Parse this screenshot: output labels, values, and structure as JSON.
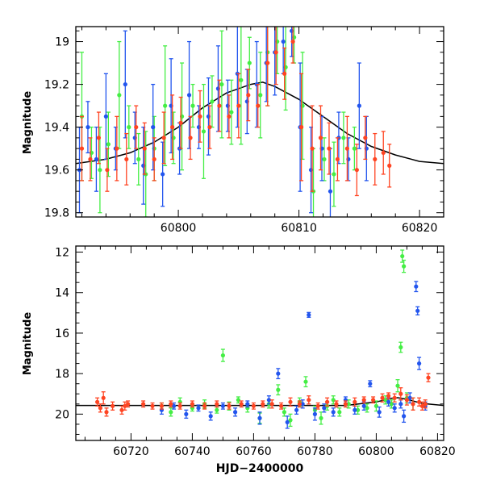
{
  "chart_data": [
    {
      "type": "scatter",
      "panel": "top",
      "title": "",
      "xlabel": "",
      "ylabel": "Magnitude",
      "xlim": [
        60791.5,
        60822
      ],
      "ylim": [
        19.82,
        18.93
      ],
      "y_inverted": true,
      "xticks": [
        60800,
        60810,
        60820
      ],
      "yticks": [
        19,
        19.2,
        19.4,
        19.6,
        19.8
      ],
      "colors": {
        "green": "#44ee44",
        "blue": "#2255ee",
        "red": "#ff4422",
        "model": "#000000"
      },
      "model_curve": {
        "name": "",
        "x": [
          60791.5,
          60794,
          60796,
          60798,
          60800,
          60802,
          60804,
          60806,
          60807,
          60808,
          60810,
          60812,
          60814,
          60816,
          60818,
          60820,
          60822
        ],
        "y": [
          19.57,
          19.55,
          19.52,
          19.47,
          19.4,
          19.31,
          19.24,
          19.2,
          19.19,
          19.21,
          19.27,
          19.35,
          19.43,
          19.49,
          19.53,
          19.56,
          19.57
        ]
      },
      "series": [
        {
          "color": "green",
          "x": [
            60792.0,
            60792.8,
            60793.5,
            60794.2,
            60795.1,
            60795.9,
            60796.7,
            60797.3,
            60798.0,
            60798.9,
            60799.6,
            60800.3,
            60801.2,
            60802.1,
            60802.8,
            60803.6,
            60804.4,
            60805.2,
            60805.9,
            60806.8,
            60807.4,
            60808.2,
            60808.9,
            60809.6,
            60810.3,
            60811.2,
            60812.1,
            60812.9,
            60813.7,
            60814.6
          ],
          "y": [
            19.35,
            19.52,
            19.6,
            19.48,
            19.25,
            19.4,
            19.55,
            19.62,
            19.5,
            19.3,
            19.45,
            19.35,
            19.3,
            19.42,
            19.28,
            19.2,
            19.33,
            19.18,
            19.1,
            19.25,
            19.05,
            19.0,
            19.12,
            18.98,
            19.3,
            19.7,
            19.55,
            19.62,
            19.45,
            19.5
          ],
          "err": [
            0.3,
            0.12,
            0.2,
            0.15,
            0.25,
            0.1,
            0.12,
            0.2,
            0.15,
            0.28,
            0.12,
            0.25,
            0.1,
            0.22,
            0.12,
            0.25,
            0.15,
            0.3,
            0.12,
            0.2,
            0.25,
            0.15,
            0.2,
            0.12,
            0.25,
            0.2,
            0.1,
            0.15,
            0.12,
            0.1
          ]
        },
        {
          "color": "blue",
          "x": [
            60791.8,
            60792.5,
            60793.2,
            60794.0,
            60794.8,
            60795.6,
            60796.4,
            60797.1,
            60797.9,
            60798.7,
            60799.4,
            60800.1,
            60800.9,
            60801.7,
            60802.5,
            60803.3,
            60804.1,
            60804.9,
            60805.7,
            60806.5,
            60807.3,
            60808.0,
            60808.7,
            60809.4,
            60810.1,
            60811.0,
            60811.9,
            60812.6,
            60813.3,
            60814.1,
            60815.0,
            60815.6
          ],
          "y": [
            19.6,
            19.4,
            19.55,
            19.35,
            19.5,
            19.2,
            19.45,
            19.58,
            19.4,
            19.62,
            19.3,
            19.5,
            19.25,
            19.4,
            19.35,
            19.22,
            19.3,
            19.15,
            19.28,
            19.2,
            19.1,
            19.05,
            19.0,
            18.95,
            19.4,
            19.6,
            19.5,
            19.7,
            19.45,
            19.55,
            19.3,
            19.5
          ],
          "err": [
            0.2,
            0.12,
            0.15,
            0.2,
            0.1,
            0.25,
            0.12,
            0.18,
            0.2,
            0.15,
            0.22,
            0.12,
            0.25,
            0.1,
            0.18,
            0.2,
            0.12,
            0.25,
            0.15,
            0.2,
            0.18,
            0.2,
            0.15,
            0.12,
            0.3,
            0.2,
            0.15,
            0.2,
            0.12,
            0.1,
            0.2,
            0.15
          ]
        },
        {
          "color": "red",
          "x": [
            60792.0,
            60792.7,
            60793.4,
            60794.1,
            60794.9,
            60795.7,
            60796.5,
            60797.2,
            60798.0,
            60798.8,
            60799.5,
            60800.2,
            60801.0,
            60801.8,
            60802.6,
            60803.4,
            60804.2,
            60805.0,
            60805.8,
            60806.6,
            60807.4,
            60808.1,
            60808.8,
            60809.5,
            60810.2,
            60811.1,
            60811.8,
            60812.5,
            60813.2,
            60814.0,
            60814.8,
            60815.5,
            60816.3,
            60817.0,
            60817.5
          ],
          "y": [
            19.5,
            19.55,
            19.45,
            19.6,
            19.5,
            19.55,
            19.4,
            19.5,
            19.55,
            19.45,
            19.4,
            19.38,
            19.45,
            19.35,
            19.4,
            19.3,
            19.35,
            19.3,
            19.25,
            19.3,
            19.1,
            19.05,
            19.15,
            19.0,
            19.4,
            19.5,
            19.45,
            19.5,
            19.55,
            19.5,
            19.6,
            19.45,
            19.55,
            19.52,
            19.58
          ],
          "err": [
            0.15,
            0.1,
            0.12,
            0.1,
            0.15,
            0.12,
            0.1,
            0.12,
            0.1,
            0.12,
            0.15,
            0.12,
            0.1,
            0.12,
            0.1,
            0.12,
            0.1,
            0.15,
            0.12,
            0.1,
            0.2,
            0.15,
            0.12,
            0.1,
            0.25,
            0.2,
            0.15,
            0.12,
            0.1,
            0.15,
            0.12,
            0.1,
            0.12,
            0.1,
            0.1
          ]
        }
      ]
    },
    {
      "type": "scatter",
      "panel": "bottom",
      "title": "",
      "xlabel": "HJD−2400000",
      "ylabel": "Magnitude",
      "xlim": [
        60702,
        60822
      ],
      "ylim": [
        21.3,
        11.7
      ],
      "y_inverted": true,
      "xticks": [
        60720,
        60740,
        60760,
        60780,
        60800,
        60820
      ],
      "yticks": [
        12,
        14,
        16,
        18,
        20
      ],
      "colors": {
        "green": "#44ee44",
        "blue": "#2255ee",
        "red": "#ff4422",
        "model": "#000000"
      },
      "model_curve": {
        "name": "",
        "x": [
          60702,
          60790,
          60800,
          60805,
          60807,
          60810,
          60815,
          60822
        ],
        "y": [
          19.57,
          19.57,
          19.4,
          19.22,
          19.19,
          19.27,
          19.47,
          19.57
        ]
      },
      "series": [
        {
          "color": "green",
          "x": [
            60730,
            60733,
            60736,
            60740,
            60744,
            60748,
            60750,
            60752,
            60755,
            60758,
            60762,
            60765,
            60768,
            60770,
            60772,
            60775,
            60777,
            60780,
            60782,
            60784,
            60786,
            60788,
            60791,
            60794,
            60797,
            60800,
            60803,
            60805,
            60807,
            60808,
            60808.5,
            60809,
            60810,
            60812
          ],
          "y": [
            19.6,
            19.9,
            19.4,
            19.7,
            19.5,
            19.8,
            17.1,
            19.6,
            19.3,
            19.7,
            20.2,
            19.5,
            18.8,
            19.9,
            20.3,
            19.4,
            18.4,
            19.8,
            20.2,
            19.6,
            19.3,
            19.9,
            19.5,
            19.8,
            19.7,
            19.6,
            19.3,
            19.5,
            18.6,
            16.7,
            12.2,
            12.7,
            19.2,
            19.5
          ],
          "err": [
            0.15,
            0.2,
            0.2,
            0.15,
            0.2,
            0.15,
            0.3,
            0.2,
            0.15,
            0.2,
            0.25,
            0.2,
            0.25,
            0.2,
            0.3,
            0.2,
            0.25,
            0.2,
            0.3,
            0.2,
            0.2,
            0.2,
            0.2,
            0.2,
            0.2,
            0.25,
            0.2,
            0.2,
            0.3,
            0.25,
            0.3,
            0.3,
            0.25,
            0.3
          ]
        },
        {
          "color": "blue",
          "x": [
            60730,
            60734,
            60738,
            60742,
            60746,
            60750,
            60754,
            60758,
            60762,
            60765,
            60768,
            60771,
            60774,
            60776,
            60778,
            60780,
            60783,
            60786,
            60790,
            60793,
            60796,
            60798,
            60801,
            60804,
            60806,
            60808,
            60809,
            60811,
            60813,
            60813.5,
            60814,
            60816
          ],
          "y": [
            19.8,
            19.6,
            20.0,
            19.7,
            20.1,
            19.6,
            19.9,
            19.5,
            20.2,
            19.3,
            18.0,
            20.4,
            19.8,
            19.5,
            15.1,
            20.0,
            19.7,
            19.9,
            19.3,
            19.8,
            19.6,
            18.5,
            19.9,
            19.4,
            19.7,
            19.5,
            20.1,
            19.2,
            13.7,
            14.9,
            17.5,
            19.6
          ],
          "err": [
            0.2,
            0.15,
            0.2,
            0.15,
            0.2,
            0.15,
            0.2,
            0.15,
            0.3,
            0.2,
            0.25,
            0.3,
            0.2,
            0.2,
            0.12,
            0.3,
            0.2,
            0.2,
            0.15,
            0.2,
            0.2,
            0.15,
            0.25,
            0.2,
            0.2,
            0.2,
            0.3,
            0.25,
            0.25,
            0.2,
            0.3,
            0.2
          ]
        },
        {
          "color": "red",
          "x": [
            60709,
            60710,
            60711,
            60712,
            60714,
            60717,
            60718,
            60719,
            60724,
            60727,
            60730,
            60733,
            60736,
            60740,
            60744,
            60748,
            60752,
            60756,
            60760,
            60763,
            60766,
            60769,
            60772,
            60775,
            60778,
            60781,
            60784,
            60787,
            60790,
            60793,
            60796,
            60799,
            60802,
            60804,
            60806,
            60808,
            60810,
            60812,
            60814,
            60815,
            60816,
            60817
          ],
          "y": [
            19.4,
            19.7,
            19.2,
            19.9,
            19.6,
            19.8,
            19.6,
            19.5,
            19.5,
            19.6,
            19.6,
            19.5,
            19.6,
            19.5,
            19.6,
            19.5,
            19.6,
            19.5,
            19.6,
            19.5,
            19.5,
            19.6,
            19.4,
            19.5,
            19.3,
            19.6,
            19.4,
            19.5,
            19.5,
            19.4,
            19.3,
            19.3,
            19.2,
            19.1,
            19.2,
            19.0,
            19.3,
            19.5,
            19.4,
            19.6,
            19.5,
            18.2
          ],
          "err": [
            0.2,
            0.2,
            0.3,
            0.2,
            0.2,
            0.2,
            0.2,
            0.15,
            0.15,
            0.15,
            0.15,
            0.15,
            0.15,
            0.15,
            0.15,
            0.15,
            0.15,
            0.15,
            0.15,
            0.15,
            0.2,
            0.15,
            0.2,
            0.15,
            0.2,
            0.15,
            0.2,
            0.15,
            0.15,
            0.2,
            0.15,
            0.15,
            0.2,
            0.15,
            0.2,
            0.3,
            0.25,
            0.3,
            0.2,
            0.2,
            0.2,
            0.2
          ]
        }
      ]
    }
  ]
}
